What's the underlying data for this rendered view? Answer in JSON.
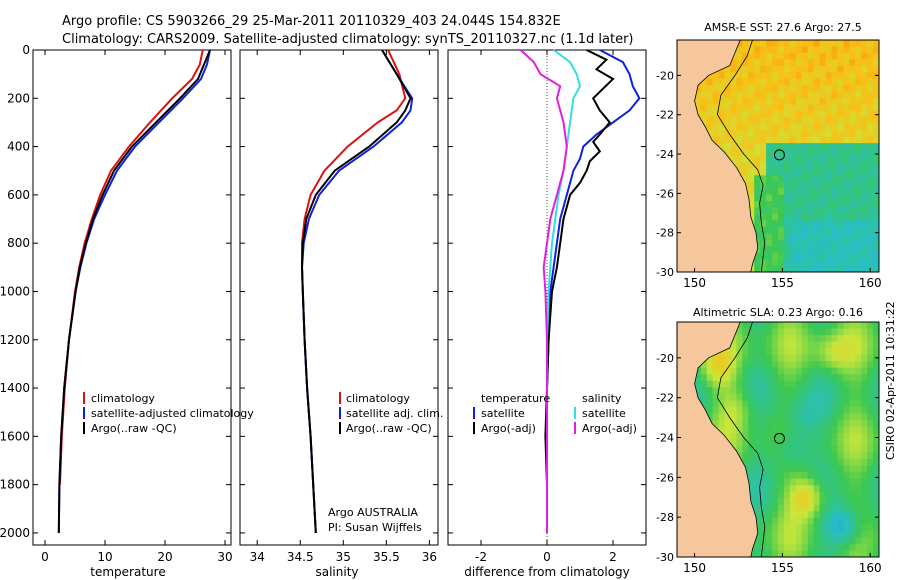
{
  "title_line1": "Argo profile: CS 5903266_29 25-Mar-2011 20110329_403 24.044S 154.832E",
  "title_line2": "Climatology: CARS2009. Satellite-adjusted climatology: synTS_20110327.nc (1.1d later)",
  "footer_credit": "CSIRO 02-Apr-2011 10:31:22",
  "float_info": [
    "Argo AUSTRALIA",
    "PI: Susan Wijffels"
  ],
  "colors": {
    "climatology": "#e01010",
    "satellite": "#1020e0",
    "argo": "#000000",
    "sat_diff": "#30e0e0",
    "argo_diff": "#e020e0",
    "land": "#f6c79c"
  },
  "chart_data": [
    {
      "type": "line",
      "panel": "temperature",
      "xlabel": "temperature",
      "xlim": [
        -2,
        31
      ],
      "ylim": [
        2050,
        0
      ],
      "xticks": [
        0,
        10,
        20,
        30
      ],
      "yticks": [
        0,
        200,
        400,
        600,
        800,
        1000,
        1200,
        1400,
        1600,
        1800,
        2000
      ],
      "legend": [
        "climatology",
        "satellite-adjusted climatology",
        "Argo(..raw -QC)"
      ],
      "series": [
        {
          "name": "climatology",
          "color": "#e01010",
          "depth": [
            0,
            60,
            120,
            200,
            300,
            400,
            500,
            600,
            700,
            800,
            900,
            1000,
            1200,
            1400,
            1600,
            1800
          ],
          "values": [
            26.3,
            25.8,
            24.5,
            21.2,
            17.5,
            14.0,
            11.0,
            9.2,
            7.8,
            6.6,
            5.7,
            5.0,
            4.0,
            3.3,
            2.8,
            2.5
          ]
        },
        {
          "name": "satellite-adjusted climatology",
          "color": "#1020e0",
          "depth": [
            0,
            60,
            120,
            200,
            300,
            400,
            500,
            600,
            700,
            800,
            900,
            1000,
            1200,
            1400,
            1600,
            1800,
            2000
          ],
          "values": [
            27.5,
            27.0,
            26.0,
            23.0,
            19.0,
            15.0,
            12.0,
            10.0,
            8.2,
            6.9,
            5.9,
            5.1,
            4.0,
            3.2,
            2.7,
            2.4,
            2.3
          ]
        },
        {
          "name": "Argo(..raw -QC)",
          "color": "#000000",
          "depth": [
            0,
            60,
            120,
            200,
            300,
            400,
            500,
            600,
            700,
            800,
            900,
            1000,
            1200,
            1400,
            1600,
            1800,
            2000
          ],
          "values": [
            27.5,
            26.5,
            25.5,
            22.5,
            18.5,
            14.5,
            11.5,
            9.6,
            8.0,
            6.8,
            5.8,
            5.1,
            4.0,
            3.2,
            2.7,
            2.4,
            2.3
          ]
        }
      ]
    },
    {
      "type": "line",
      "panel": "salinity",
      "xlabel": "salinity",
      "xlim": [
        33.8,
        36.1
      ],
      "ylim": [
        2050,
        0
      ],
      "xticks": [
        34,
        34.5,
        35,
        35.5,
        36
      ],
      "legend": [
        "climatology",
        "satellite adj. clim.",
        "Argo(..raw -QC)"
      ],
      "series": [
        {
          "name": "climatology",
          "color": "#e01010",
          "depth": [
            0,
            100,
            200,
            250,
            300,
            400,
            500,
            600,
            700,
            800,
            900,
            1000,
            1200,
            1400,
            1600,
            1800,
            2000
          ],
          "values": [
            35.52,
            35.65,
            35.72,
            35.62,
            35.4,
            35.05,
            34.78,
            34.62,
            34.55,
            34.52,
            34.52,
            34.53,
            34.55,
            34.58,
            34.62,
            34.65,
            34.68
          ]
        },
        {
          "name": "satellite adj. clim.",
          "color": "#1020e0",
          "depth": [
            0,
            100,
            200,
            250,
            300,
            400,
            500,
            600,
            700,
            800,
            900,
            1000,
            1200,
            1400,
            1600,
            1800,
            2000
          ],
          "values": [
            35.45,
            35.62,
            35.8,
            35.78,
            35.68,
            35.35,
            34.95,
            34.72,
            34.6,
            34.54,
            34.52,
            34.53,
            34.55,
            34.58,
            34.62,
            34.65,
            34.68
          ]
        },
        {
          "name": "Argo(..raw -QC)",
          "color": "#000000",
          "depth": [
            0,
            100,
            200,
            250,
            300,
            400,
            500,
            600,
            700,
            800,
            900,
            1000,
            1200,
            1400,
            1600,
            1800,
            2000
          ],
          "values": [
            35.45,
            35.62,
            35.78,
            35.72,
            35.62,
            35.3,
            34.9,
            34.68,
            34.57,
            34.53,
            34.52,
            34.53,
            34.55,
            34.58,
            34.62,
            34.65,
            34.68
          ]
        }
      ]
    },
    {
      "type": "line",
      "panel": "difference",
      "xlabel": "difference from climatology",
      "xlim": [
        -3,
        3
      ],
      "ylim": [
        2050,
        0
      ],
      "xticks": [
        -2,
        0,
        2
      ],
      "legend_temperature_title": "temperature",
      "legend_salinity_title": "salinity",
      "legend": [
        "satellite",
        "Argo(-adj)",
        "satellite",
        "Argo(-adj)"
      ],
      "series": [
        {
          "name": "temperature satellite",
          "color": "#1020e0",
          "depth": [
            0,
            50,
            100,
            150,
            200,
            250,
            300,
            350,
            400,
            450,
            500,
            600,
            700,
            800,
            900,
            1000,
            1200,
            1400,
            1600,
            1800,
            2000
          ],
          "values": [
            1.6,
            2.3,
            2.5,
            2.6,
            2.8,
            2.5,
            2.0,
            1.5,
            1.1,
            1.0,
            0.8,
            0.6,
            0.4,
            0.3,
            0.2,
            0.1,
            0.05,
            0,
            0,
            0,
            0
          ]
        },
        {
          "name": "temperature Argo(-adj)",
          "color": "#000000",
          "depth": [
            0,
            40,
            80,
            120,
            160,
            200,
            250,
            300,
            350,
            380,
            420,
            460,
            500,
            550,
            600,
            700,
            800,
            900,
            1000,
            1200,
            1400,
            1600,
            1800,
            2000
          ],
          "values": [
            1.2,
            1.8,
            1.5,
            2.0,
            1.7,
            1.4,
            1.6,
            1.9,
            1.6,
            1.4,
            1.6,
            1.3,
            1.2,
            1.0,
            0.7,
            0.5,
            0.4,
            0.3,
            0.15,
            0.05,
            0,
            -0.05,
            0,
            0
          ]
        },
        {
          "name": "salinity satellite",
          "color": "#30e0e0",
          "depth": [
            0,
            50,
            100,
            150,
            200,
            300,
            400,
            500,
            600,
            700,
            800,
            900,
            1000,
            1200,
            1400,
            1600,
            1800,
            2000
          ],
          "values": [
            0.2,
            0.7,
            0.9,
            1.0,
            0.8,
            0.7,
            0.6,
            0.5,
            0.35,
            0.25,
            0.15,
            0.1,
            0.05,
            0,
            0,
            0,
            0,
            0
          ]
        },
        {
          "name": "salinity Argo(-adj)",
          "color": "#e020e0",
          "depth": [
            0,
            50,
            100,
            150,
            200,
            300,
            400,
            500,
            600,
            700,
            800,
            900,
            1000,
            1200,
            1400,
            1600,
            1800,
            2000
          ],
          "values": [
            -0.8,
            -0.4,
            -0.2,
            0.4,
            0.3,
            0.5,
            0.6,
            0.5,
            0.3,
            0.1,
            0,
            -0.1,
            -0.05,
            0,
            0,
            0,
            0,
            0
          ]
        }
      ]
    },
    {
      "type": "heatmap",
      "panel": "sst_map",
      "title": "AMSR-E SST: 27.6 Argo: 27.5",
      "xticks": [
        150,
        155,
        160
      ],
      "yticks": [
        -20,
        -22,
        -24,
        -26,
        -28,
        -30
      ],
      "xlim": [
        149,
        160.5
      ],
      "ylim": [
        -30,
        -18.2
      ],
      "argo_position": {
        "lon": 154.832,
        "lat": -24.044
      }
    },
    {
      "type": "heatmap",
      "panel": "sla_map",
      "title": "Altimetric SLA: 0.23 Argo: 0.16",
      "xticks": [
        150,
        155,
        160
      ],
      "yticks": [
        -20,
        -22,
        -24,
        -26,
        -28,
        -30
      ],
      "xlim": [
        149,
        160.5
      ],
      "ylim": [
        -30,
        -18.2
      ],
      "argo_position": {
        "lon": 154.832,
        "lat": -24.044
      }
    }
  ]
}
